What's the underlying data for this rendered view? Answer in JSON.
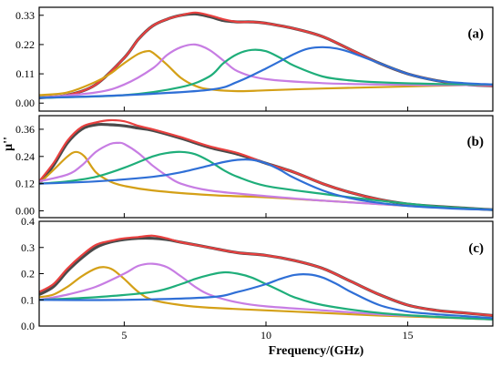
{
  "chart_data": {
    "type": "line",
    "xlabel": "Frequency/(GHz)",
    "ylabel": "μ''",
    "xlim": [
      2,
      18
    ],
    "xticks": [
      5,
      10,
      15
    ],
    "xtick_labels": [
      "5",
      "10",
      "15"
    ],
    "colors": {
      "measured": "#4a4a4a",
      "fit": "#e8403f",
      "peak_orange": "#d4a017",
      "peak_violet": "#c77de3",
      "peak_green": "#1fae7a",
      "peak_blue": "#2f6fd6"
    },
    "panels": [
      {
        "label": "(a)",
        "ylim": [
          -0.03,
          0.36
        ],
        "yticks": [
          0,
          0.11,
          0.22,
          0.33
        ],
        "ytick_labels": [
          "0.00",
          "0.11",
          "0.22",
          "0.33"
        ],
        "series": [
          {
            "color_key": "measured",
            "x": [
              2,
              3,
              4,
              5,
              5.5,
              6,
              6.5,
              7,
              7.5,
              8,
              8.5,
              9,
              9.5,
              10,
              11,
              12,
              13,
              14,
              15,
              16,
              17,
              18
            ],
            "y": [
              0.02,
              0.03,
              0.07,
              0.17,
              0.24,
              0.29,
              0.315,
              0.33,
              0.335,
              0.325,
              0.31,
              0.305,
              0.305,
              0.3,
              0.28,
              0.25,
              0.2,
              0.15,
              0.11,
              0.085,
              0.07,
              0.065
            ]
          },
          {
            "color_key": "fit",
            "x": [
              2,
              3,
              4,
              5,
              5.5,
              6,
              6.5,
              7,
              7.5,
              8,
              8.5,
              9,
              9.5,
              10,
              11,
              12,
              13,
              14,
              15,
              16,
              17,
              18
            ],
            "y": [
              0.02,
              0.03,
              0.07,
              0.17,
              0.24,
              0.29,
              0.315,
              0.33,
              0.34,
              0.33,
              0.315,
              0.305,
              0.305,
              0.3,
              0.28,
              0.25,
              0.2,
              0.15,
              0.11,
              0.085,
              0.07,
              0.065
            ]
          },
          {
            "color_key": "peak_orange",
            "x": [
              2,
              3,
              4,
              4.5,
              5,
              5.5,
              5.8,
              6,
              6.5,
              7,
              7.5,
              8,
              9,
              10,
              12,
              14,
              16,
              18
            ],
            "y": [
              0.03,
              0.04,
              0.08,
              0.11,
              0.15,
              0.185,
              0.195,
              0.19,
              0.145,
              0.095,
              0.065,
              0.052,
              0.045,
              0.048,
              0.055,
              0.06,
              0.065,
              0.07
            ]
          },
          {
            "color_key": "peak_violet",
            "x": [
              2,
              4,
              5,
              6,
              6.5,
              7,
              7.5,
              8,
              8.5,
              9,
              10,
              12,
              14,
              16,
              18
            ],
            "y": [
              0.02,
              0.04,
              0.07,
              0.13,
              0.18,
              0.21,
              0.22,
              0.2,
              0.16,
              0.12,
              0.09,
              0.075,
              0.07,
              0.068,
              0.068
            ]
          },
          {
            "color_key": "peak_green",
            "x": [
              2,
              5,
              7,
              8,
              8.5,
              9,
              9.5,
              10,
              10.5,
              11,
              12,
              13,
              14,
              16,
              18
            ],
            "y": [
              0.02,
              0.03,
              0.06,
              0.1,
              0.15,
              0.185,
              0.2,
              0.195,
              0.17,
              0.14,
              0.1,
              0.085,
              0.078,
              0.072,
              0.07
            ]
          },
          {
            "color_key": "peak_blue",
            "x": [
              2,
              5,
              8,
              9,
              10,
              11,
              11.5,
              12,
              12.5,
              13,
              14,
              15,
              16,
              17,
              18
            ],
            "y": [
              0.02,
              0.03,
              0.05,
              0.08,
              0.13,
              0.185,
              0.205,
              0.21,
              0.205,
              0.19,
              0.15,
              0.11,
              0.085,
              0.075,
              0.07
            ]
          }
        ]
      },
      {
        "label": "(b)",
        "ylim": [
          -0.03,
          0.42
        ],
        "yticks": [
          0,
          0.12,
          0.24,
          0.36
        ],
        "ytick_labels": [
          "0.00",
          "0.12",
          "0.24",
          "0.36"
        ],
        "series": [
          {
            "color_key": "measured",
            "x": [
              2,
              2.5,
              3,
              3.5,
              4,
              4.5,
              5,
              5.5,
              6,
              7,
              8,
              9,
              10,
              11,
              12,
              13,
              14,
              15,
              16,
              17,
              18
            ],
            "y": [
              0.12,
              0.2,
              0.3,
              0.36,
              0.38,
              0.38,
              0.375,
              0.365,
              0.355,
              0.32,
              0.28,
              0.25,
              0.21,
              0.17,
              0.12,
              0.08,
              0.05,
              0.03,
              0.02,
              0.012,
              0.005
            ]
          },
          {
            "color_key": "fit",
            "x": [
              2,
              2.5,
              3,
              3.5,
              4,
              4.5,
              5,
              5.5,
              6,
              7,
              8,
              9,
              10,
              11,
              12,
              13,
              14,
              15,
              16,
              17,
              18
            ],
            "y": [
              0.13,
              0.21,
              0.31,
              0.37,
              0.39,
              0.4,
              0.395,
              0.375,
              0.36,
              0.325,
              0.285,
              0.255,
              0.21,
              0.17,
              0.12,
              0.08,
              0.05,
              0.03,
              0.02,
              0.012,
              0.005
            ]
          },
          {
            "color_key": "peak_orange",
            "x": [
              2,
              2.5,
              3,
              3.3,
              3.6,
              4,
              4.5,
              5,
              6,
              8,
              10,
              12,
              14,
              16,
              18
            ],
            "y": [
              0.12,
              0.18,
              0.24,
              0.26,
              0.24,
              0.17,
              0.13,
              0.11,
              0.09,
              0.07,
              0.06,
              0.045,
              0.03,
              0.015,
              0.005
            ]
          },
          {
            "color_key": "peak_violet",
            "x": [
              2,
              3,
              3.5,
              4,
              4.5,
              4.8,
              5,
              5.5,
              6,
              6.5,
              7,
              8,
              10,
              12,
              14,
              16,
              18
            ],
            "y": [
              0.13,
              0.16,
              0.2,
              0.26,
              0.295,
              0.3,
              0.295,
              0.255,
              0.2,
              0.155,
              0.12,
              0.09,
              0.065,
              0.045,
              0.03,
              0.015,
              0.005
            ]
          },
          {
            "color_key": "peak_green",
            "x": [
              2,
              3,
              4,
              5,
              6,
              6.5,
              7,
              7.5,
              8,
              8.5,
              9,
              10,
              12,
              14,
              16,
              18
            ],
            "y": [
              0.12,
              0.13,
              0.15,
              0.19,
              0.24,
              0.255,
              0.26,
              0.25,
              0.22,
              0.18,
              0.15,
              0.11,
              0.075,
              0.045,
              0.02,
              0.005
            ]
          },
          {
            "color_key": "peak_blue",
            "x": [
              2,
              4,
              6,
              7,
              8,
              8.5,
              9,
              9.5,
              10,
              10.5,
              11,
              12,
              13,
              14,
              15,
              16,
              17,
              18
            ],
            "y": [
              0.12,
              0.13,
              0.15,
              0.17,
              0.2,
              0.215,
              0.225,
              0.225,
              0.21,
              0.18,
              0.145,
              0.09,
              0.055,
              0.035,
              0.022,
              0.014,
              0.008,
              0.005
            ]
          }
        ]
      },
      {
        "label": "(c)",
        "ylim": [
          0,
          0.4
        ],
        "yticks": [
          0,
          0.1,
          0.2,
          0.3,
          0.4
        ],
        "ytick_labels": [
          "0.0",
          "0.1",
          "0.2",
          "0.3",
          "0.4"
        ],
        "series": [
          {
            "color_key": "measured",
            "x": [
              2,
              2.5,
              3,
              3.5,
              4,
              4.5,
              5,
              5.5,
              6,
              6.5,
              7,
              8,
              9,
              10,
              11,
              12,
              13,
              14,
              15,
              16,
              17,
              18
            ],
            "y": [
              0.12,
              0.15,
              0.21,
              0.26,
              0.3,
              0.32,
              0.33,
              0.335,
              0.335,
              0.33,
              0.32,
              0.3,
              0.28,
              0.27,
              0.25,
              0.22,
              0.17,
              0.12,
              0.08,
              0.06,
              0.05,
              0.04
            ]
          },
          {
            "color_key": "fit",
            "x": [
              2,
              2.5,
              3,
              3.5,
              4,
              4.5,
              5,
              5.5,
              6,
              6.5,
              7,
              8,
              9,
              10,
              11,
              12,
              13,
              14,
              15,
              16,
              17,
              18
            ],
            "y": [
              0.13,
              0.16,
              0.22,
              0.27,
              0.31,
              0.325,
              0.335,
              0.34,
              0.345,
              0.335,
              0.32,
              0.3,
              0.28,
              0.27,
              0.25,
              0.22,
              0.17,
              0.12,
              0.08,
              0.06,
              0.05,
              0.04
            ]
          },
          {
            "color_key": "peak_orange",
            "x": [
              2,
              2.5,
              3,
              3.5,
              4,
              4.3,
              4.6,
              5,
              5.5,
              6,
              7,
              8,
              10,
              12,
              14,
              16,
              18
            ],
            "y": [
              0.11,
              0.12,
              0.15,
              0.19,
              0.22,
              0.225,
              0.215,
              0.18,
              0.13,
              0.1,
              0.08,
              0.07,
              0.06,
              0.05,
              0.04,
              0.033,
              0.025
            ]
          },
          {
            "color_key": "peak_violet",
            "x": [
              2,
              3,
              4,
              5,
              5.5,
              6,
              6.5,
              7,
              7.5,
              8,
              9,
              10,
              12,
              14,
              16,
              18
            ],
            "y": [
              0.1,
              0.12,
              0.15,
              0.2,
              0.23,
              0.238,
              0.225,
              0.19,
              0.15,
              0.12,
              0.09,
              0.075,
              0.06,
              0.045,
              0.035,
              0.025
            ]
          },
          {
            "color_key": "peak_green",
            "x": [
              2,
              4,
              6,
              7,
              7.5,
              8,
              8.5,
              9,
              9.5,
              10,
              10.5,
              11,
              12,
              14,
              16,
              18
            ],
            "y": [
              0.1,
              0.11,
              0.13,
              0.16,
              0.18,
              0.195,
              0.205,
              0.2,
              0.185,
              0.16,
              0.135,
              0.11,
              0.08,
              0.05,
              0.035,
              0.025
            ]
          },
          {
            "color_key": "peak_blue",
            "x": [
              2,
              5,
              8,
              9,
              10,
              10.5,
              11,
              11.5,
              12,
              12.5,
              13,
              14,
              15,
              16,
              17,
              18
            ],
            "y": [
              0.1,
              0.1,
              0.11,
              0.13,
              0.16,
              0.18,
              0.195,
              0.197,
              0.185,
              0.16,
              0.13,
              0.08,
              0.055,
              0.045,
              0.038,
              0.03
            ]
          }
        ]
      }
    ]
  }
}
